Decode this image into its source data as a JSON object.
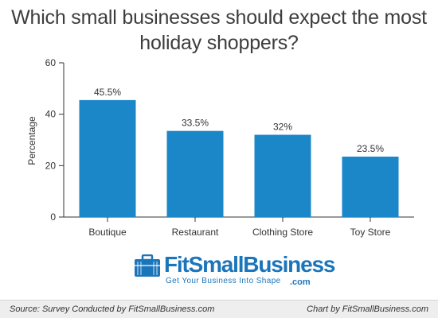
{
  "chart_data": {
    "type": "bar",
    "title": "Which small businesses should expect the most holiday shoppers?",
    "title_lines": [
      "Which small businesses should expect the most",
      "holiday shoppers?"
    ],
    "categories": [
      "Boutique",
      "Restaurant",
      "Clothing Store",
      "Toy Store"
    ],
    "values": [
      45.5,
      33.5,
      32,
      23.5
    ],
    "data_labels": [
      "45.5%",
      "33.5%",
      "32%",
      "23.5%"
    ],
    "ylabel": "Percentage",
    "xlabel": "",
    "ylim": [
      0,
      60
    ],
    "yticks": [
      0,
      20,
      40,
      60
    ],
    "grid": false,
    "legend": "none",
    "bar_color": "#1b87c9"
  },
  "logo": {
    "name": "FitSmallBusiness",
    "suffix": ".com",
    "tagline": "Get Your Business Into Shape",
    "color": "#1b75bb",
    "icon": "briefcase-icon"
  },
  "footer": {
    "source": "Source: Survey Conducted by FitSmallBusiness.com",
    "credit": "Chart by FitSmallBusiness.com"
  }
}
